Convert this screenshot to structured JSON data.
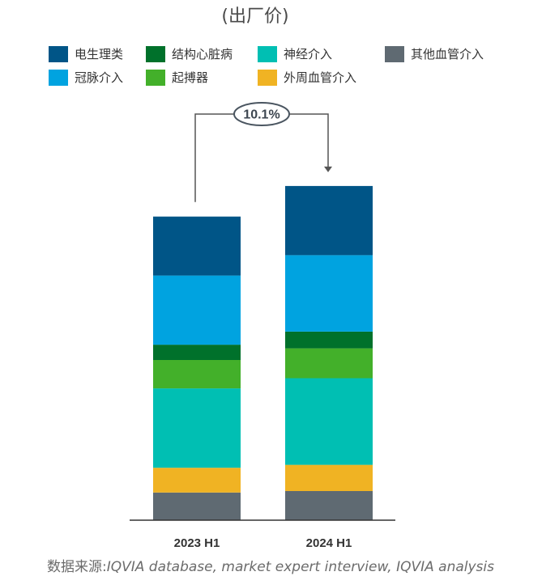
{
  "subtitle": "(出厂价)",
  "source": {
    "label": "数据来源:",
    "text": "IQVIA database, market expert interview, IQVIA analysis"
  },
  "growth_label": "10.1%",
  "chart_data": {
    "type": "bar",
    "stacked": true,
    "categories": [
      "2023 H1",
      "2024 H1"
    ],
    "ylim": [
      0,
      460
    ],
    "series": [
      {
        "name": "其他血管介入",
        "color": "#5f6a72",
        "values": [
          38,
          40
        ]
      },
      {
        "name": "外周血管介入",
        "color": "#f0b323",
        "values": [
          34,
          36
        ]
      },
      {
        "name": "神经介入",
        "color": "#00bfb3",
        "values": [
          109,
          119
        ]
      },
      {
        "name": "起搏器",
        "color": "#43b02a",
        "values": [
          39,
          41
        ]
      },
      {
        "name": "结构心脏病",
        "color": "#00712b",
        "values": [
          21,
          23
        ]
      },
      {
        "name": "冠脉介入",
        "color": "#00a3e0",
        "values": [
          95,
          105
        ]
      },
      {
        "name": "电生理类",
        "color": "#005587",
        "values": [
          81,
          95
        ]
      }
    ],
    "legend_order": [
      "电生理类",
      "结构心脏病",
      "神经介入",
      "其他血管介入",
      "冠脉介入",
      "起搏器",
      "外周血管介入"
    ],
    "legend_placement": "top",
    "grid": false
  }
}
